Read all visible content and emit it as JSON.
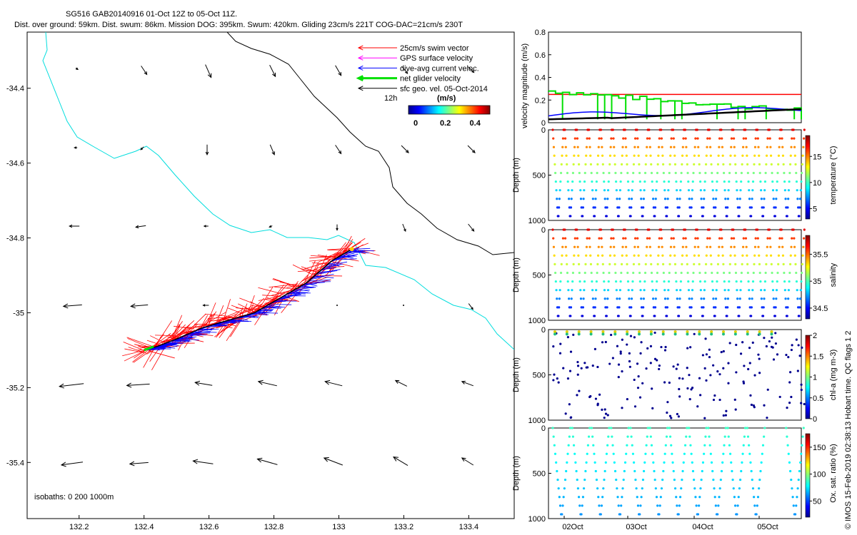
{
  "header": {
    "title": "SG516 GAB20140916 01-Oct 12Z to 05-Oct 11Z.",
    "subtitle": "Dist. over ground: 59km. Dist. swum: 86km. Mission DOG: 395km. Swum: 420km. Gliding 23cm/s 221T COG-DAC=21cm/s 230T"
  },
  "credit": "© IMOS 15-Feb-2019 02:38:13 Hobart time. QC flags 1  2",
  "colors": {
    "swim": "#ff0000",
    "gps": "#ff00ff",
    "dac": "#0000ff",
    "net": "#00e000",
    "geo": "#000000",
    "isobath_shallow": "#00dddd",
    "isobath_deep": "#000000"
  },
  "chart_data": [
    {
      "type": "scatter",
      "panel": "map",
      "xticks": [
        "132.2",
        "132.4",
        "132.6",
        "132.8",
        "133",
        "133.2",
        "133.4"
      ],
      "yticks": [
        "-34.4",
        "-34.6",
        "-34.8",
        "-35",
        "-35.2",
        "-35.4"
      ],
      "xlim": [
        132.04,
        133.54
      ],
      "ylim": [
        -35.55,
        -34.25
      ],
      "legend": {
        "position": "top-right",
        "items": [
          {
            "label": "25cm/s swim vector",
            "color": "#ff0000"
          },
          {
            "label": "GPS surface velocity",
            "color": "#ff00ff"
          },
          {
            "label": "dive-avg current veloc.",
            "color": "#0000ff"
          },
          {
            "label": "net glider velocity",
            "color": "#00e000"
          },
          {
            "label": "sfc geo. vel. 05-Oct-2014",
            "color": "#000000"
          }
        ],
        "time_label": "12h",
        "colorbar_title": "(m/s)",
        "colorbar_ticks": [
          "0",
          "0.2",
          "0.4"
        ]
      },
      "isobath_note": "isobaths: 0   200   1000m",
      "track": {
        "lon": [
          133.04,
          132.98,
          132.9,
          132.82,
          132.74,
          132.66,
          132.58,
          132.5,
          132.44,
          132.4
        ],
        "lat": [
          -34.83,
          -34.86,
          -34.92,
          -34.96,
          -35.0,
          -35.02,
          -35.04,
          -35.07,
          -35.09,
          -35.1
        ]
      }
    },
    {
      "type": "line",
      "panel": "velocity",
      "ylabel": "velocity magnitude (m/s)",
      "ylim": [
        0,
        0.8
      ],
      "yticks": [
        "0",
        "0.2",
        "0.4",
        "0.6",
        "0.8"
      ]
    },
    {
      "type": "scatter",
      "panel": "temperature",
      "ylabel": "Depth (m)",
      "colorbar_label": "temperature (°C)",
      "colorbar_ticks": [
        "5",
        "10",
        "15"
      ],
      "yticks": [
        "0",
        "500",
        "1000"
      ],
      "ylim": [
        1000,
        0
      ]
    },
    {
      "type": "scatter",
      "panel": "salinity",
      "ylabel": "Depth (m)",
      "colorbar_label": "salinity",
      "colorbar_ticks": [
        "34.5",
        "35",
        "35.5"
      ],
      "yticks": [
        "0",
        "500",
        "1000"
      ],
      "ylim": [
        1000,
        0
      ]
    },
    {
      "type": "scatter",
      "panel": "chla",
      "ylabel": "Depth (m)",
      "colorbar_label": "chl-a (mg m-3)",
      "colorbar_ticks": [
        "0",
        "0.5",
        "1",
        "1.5",
        "2"
      ],
      "yticks": [
        "0",
        "500",
        "1000"
      ],
      "ylim": [
        1000,
        0
      ]
    },
    {
      "type": "scatter",
      "panel": "oxygen",
      "ylabel": "Depth (m)",
      "colorbar_label": "Ox. sat. ratio (%)",
      "colorbar_ticks": [
        "50",
        "100",
        "150"
      ],
      "yticks": [
        "0",
        "500",
        "1000"
      ],
      "ylim": [
        1000,
        0
      ],
      "xticks": [
        "02Oct",
        "03Oct",
        "04Oct",
        "05Oct"
      ]
    }
  ]
}
